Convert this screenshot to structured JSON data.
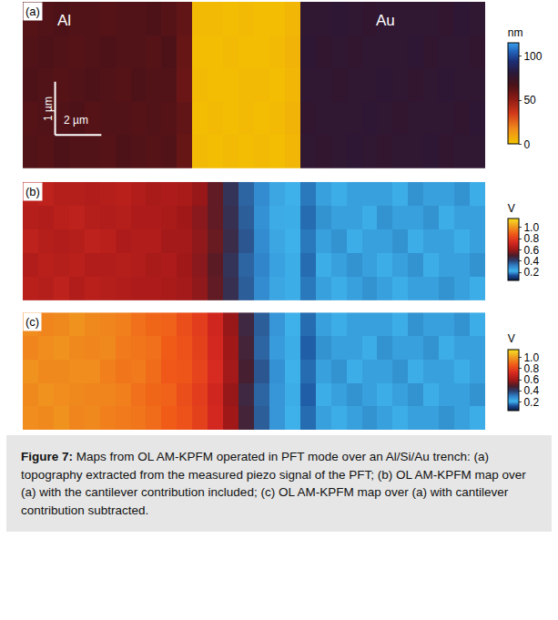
{
  "chart_data": [
    {
      "type": "heatmap",
      "panel": "(a)",
      "tick_labels": false,
      "labels": [
        "Al",
        "Au"
      ],
      "scale_bar": [
        "1 µm",
        "2 µm"
      ],
      "colorbar_title": "nm",
      "zlim": [
        0,
        115
      ],
      "zticks": [
        0,
        50,
        100
      ],
      "cells": [
        [
          65,
          64,
          66,
          65,
          65,
          64,
          66,
          65,
          64,
          65,
          60,
          3,
          2,
          3,
          2,
          3,
          2,
          4,
          78,
          77,
          78,
          79,
          78,
          77,
          78,
          78,
          79,
          77,
          78,
          78
        ],
        [
          64,
          65,
          65,
          66,
          64,
          65,
          65,
          64,
          65,
          64,
          61,
          2,
          3,
          2,
          3,
          2,
          3,
          5,
          77,
          78,
          78,
          78,
          79,
          78,
          77,
          78,
          78,
          78,
          77,
          79
        ],
        [
          66,
          65,
          64,
          65,
          66,
          65,
          64,
          66,
          65,
          65,
          59,
          3,
          2,
          2,
          3,
          3,
          2,
          4,
          78,
          78,
          77,
          78,
          78,
          79,
          78,
          77,
          78,
          79,
          78,
          78
        ],
        [
          65,
          66,
          65,
          64,
          65,
          66,
          65,
          65,
          64,
          66,
          60,
          2,
          2,
          3,
          2,
          2,
          3,
          5,
          79,
          77,
          78,
          77,
          78,
          78,
          78,
          79,
          77,
          78,
          78,
          77
        ],
        [
          64,
          65,
          66,
          65,
          65,
          64,
          65,
          65,
          66,
          64,
          61,
          3,
          3,
          2,
          3,
          2,
          2,
          4,
          78,
          78,
          79,
          78,
          77,
          78,
          78,
          78,
          78,
          77,
          79,
          78
        ]
      ]
    },
    {
      "type": "heatmap",
      "panel": "(b)",
      "tick_labels": false,
      "colorbar_title": "V",
      "zlim": [
        0.05,
        1.15
      ],
      "zticks": [
        0.2,
        0.4,
        0.6,
        0.8,
        {
          "value": 1,
          "label": "1.0"
        }
      ],
      "cells": [
        [
          0.66,
          0.65,
          0.67,
          0.64,
          0.66,
          0.65,
          0.64,
          0.63,
          0.63,
          0.62,
          0.61,
          0.58,
          0.52,
          0.44,
          0.36,
          0.29,
          0.24,
          0.21,
          0.17,
          0.2,
          0.21,
          0.2,
          0.19,
          0.2,
          0.21,
          0.2,
          0.2,
          0.19,
          0.2,
          0.21
        ],
        [
          0.64,
          0.66,
          0.65,
          0.66,
          0.64,
          0.64,
          0.65,
          0.64,
          0.62,
          0.63,
          0.6,
          0.57,
          0.51,
          0.43,
          0.35,
          0.3,
          0.25,
          0.21,
          0.16,
          0.21,
          0.2,
          0.19,
          0.2,
          0.21,
          0.2,
          0.19,
          0.21,
          0.2,
          0.2,
          0.19
        ],
        [
          0.67,
          0.65,
          0.64,
          0.65,
          0.67,
          0.66,
          0.63,
          0.64,
          0.64,
          0.61,
          0.61,
          0.58,
          0.53,
          0.45,
          0.37,
          0.29,
          0.24,
          0.22,
          0.17,
          0.2,
          0.19,
          0.21,
          0.2,
          0.2,
          0.19,
          0.21,
          0.2,
          0.2,
          0.21,
          0.2
        ],
        [
          0.65,
          0.64,
          0.66,
          0.67,
          0.65,
          0.64,
          0.65,
          0.63,
          0.63,
          0.62,
          0.6,
          0.57,
          0.52,
          0.44,
          0.36,
          0.28,
          0.23,
          0.21,
          0.16,
          0.19,
          0.2,
          0.2,
          0.21,
          0.19,
          0.2,
          0.2,
          0.19,
          0.21,
          0.2,
          0.2
        ],
        [
          0.66,
          0.67,
          0.65,
          0.65,
          0.64,
          0.65,
          0.66,
          0.64,
          0.62,
          0.63,
          0.62,
          0.59,
          0.52,
          0.43,
          0.35,
          0.29,
          0.24,
          0.22,
          0.17,
          0.2,
          0.21,
          0.2,
          0.2,
          0.2,
          0.21,
          0.19,
          0.2,
          0.2,
          0.19,
          0.21
        ]
      ]
    },
    {
      "type": "heatmap",
      "panel": "(c)",
      "tick_labels": false,
      "colorbar_title": "V",
      "zlim": [
        0.05,
        1.15
      ],
      "zticks": [
        0.2,
        0.4,
        0.6,
        0.8,
        {
          "value": 1,
          "label": "1.0"
        }
      ],
      "cells": [
        [
          0.98,
          0.97,
          0.99,
          0.96,
          0.97,
          0.95,
          0.94,
          0.93,
          0.91,
          0.88,
          0.85,
          0.8,
          0.72,
          0.6,
          0.47,
          0.36,
          0.27,
          0.22,
          0.16,
          0.2,
          0.21,
          0.2,
          0.19,
          0.2,
          0.21,
          0.2,
          0.2,
          0.19,
          0.2,
          0.21
        ],
        [
          0.97,
          0.99,
          0.98,
          0.97,
          0.96,
          0.96,
          0.95,
          0.92,
          0.9,
          0.89,
          0.84,
          0.79,
          0.71,
          0.59,
          0.46,
          0.35,
          0.27,
          0.21,
          0.15,
          0.21,
          0.2,
          0.19,
          0.2,
          0.21,
          0.2,
          0.19,
          0.21,
          0.2,
          0.2,
          0.19
        ],
        [
          0.99,
          0.97,
          0.97,
          0.98,
          0.98,
          0.95,
          0.93,
          0.94,
          0.91,
          0.87,
          0.86,
          0.81,
          0.73,
          0.61,
          0.48,
          0.37,
          0.28,
          0.22,
          0.16,
          0.2,
          0.19,
          0.21,
          0.2,
          0.2,
          0.19,
          0.21,
          0.2,
          0.2,
          0.21,
          0.2
        ],
        [
          0.96,
          0.98,
          0.99,
          0.97,
          0.96,
          0.97,
          0.94,
          0.93,
          0.92,
          0.88,
          0.85,
          0.8,
          0.72,
          0.6,
          0.47,
          0.35,
          0.26,
          0.21,
          0.15,
          0.19,
          0.2,
          0.2,
          0.21,
          0.19,
          0.2,
          0.2,
          0.19,
          0.21,
          0.2,
          0.2
        ],
        [
          0.98,
          0.96,
          0.97,
          0.99,
          0.97,
          0.96,
          0.95,
          0.92,
          0.9,
          0.89,
          0.84,
          0.79,
          0.71,
          0.59,
          0.46,
          0.36,
          0.27,
          0.22,
          0.16,
          0.2,
          0.21,
          0.2,
          0.2,
          0.2,
          0.21,
          0.19,
          0.2,
          0.2,
          0.19,
          0.21
        ]
      ]
    }
  ],
  "caption": {
    "label": "Figure 7:",
    "text": "Maps from OL AM-KPFM operated in PFT mode over an Al/Si/Au trench: (a) topography extracted from the measured piezo signal of the PFT; (b) OL AM-KPFM map over (a) with the cantilever contribution included; (c) OL AM-KPFM map over (a) with cantilever contribution subtracted."
  }
}
